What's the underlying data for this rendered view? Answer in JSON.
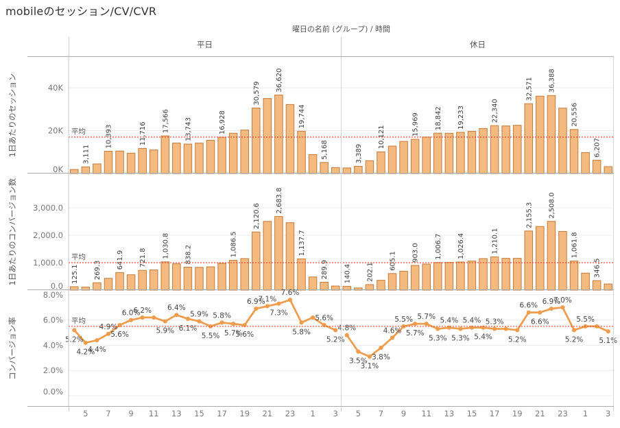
{
  "title": "mobileのセッション/CV/CVR",
  "column_header": "曜日の名前 (グループ) / 時間",
  "mean_label": "平均",
  "panes": [
    {
      "label": "平日"
    },
    {
      "label": "休日"
    }
  ],
  "x_ticks": [
    "5",
    "7",
    "9",
    "11",
    "13",
    "15",
    "17",
    "19",
    "21",
    "23",
    "1",
    "3"
  ],
  "colors": {
    "bar_fill": "#f5ba80",
    "bar_stroke": "#c07b3a",
    "line": "#f09c4d",
    "mean_line": "#e04f38",
    "grid": "#ebebeb",
    "row_border": "#ababab",
    "pane_border": "#d6d6d6",
    "axis_line": "#c4c4c4",
    "tick_text": "#767676",
    "label_text": "#3c3c3c",
    "point_label_text": "#454545"
  },
  "chart_data": [
    {
      "type": "bar",
      "row_title": "1日あたりのセッション",
      "y_ticks": [
        {
          "v": 0,
          "label": "0K"
        },
        {
          "v": 20000,
          "label": "20K"
        },
        {
          "v": 40000,
          "label": "40K"
        }
      ],
      "y_range": [
        0,
        54000
      ],
      "mean": 17000,
      "series": [
        {
          "pane": "平日",
          "values": [
            1900,
            3111,
            4500,
            10393,
            10500,
            9500,
            11716,
            11000,
            17566,
            14200,
            13743,
            14200,
            15500,
            16928,
            18800,
            20300,
            30579,
            35000,
            36620,
            32200,
            19744,
            8800,
            5168,
            2800
          ],
          "bar_labels": [
            null,
            "3,111",
            null,
            "10,393",
            null,
            null,
            "11,716",
            null,
            "17,566",
            null,
            "13,743",
            null,
            null,
            "16,928",
            null,
            null,
            "30,579",
            null,
            "36,620",
            null,
            "19,744",
            null,
            "5,168",
            null
          ]
        },
        {
          "pane": "休日",
          "values": [
            2600,
            3389,
            6000,
            10121,
            12800,
            15000,
            15969,
            17000,
            18842,
            18800,
            19233,
            19700,
            21000,
            22340,
            22200,
            22500,
            32571,
            36100,
            36388,
            30500,
            20556,
            9800,
            6207,
            3200
          ],
          "bar_labels": [
            null,
            "3,389",
            null,
            "10,121",
            null,
            null,
            "15,969",
            null,
            "18,842",
            null,
            "19,233",
            null,
            null,
            "22,340",
            null,
            null,
            "32,571",
            null,
            "36,388",
            null,
            "20,556",
            null,
            "6,207",
            null
          ]
        }
      ]
    },
    {
      "type": "bar",
      "row_title": "1日あたりのコンバージョン数",
      "y_ticks": [
        {
          "v": 0,
          "label": "0.0"
        },
        {
          "v": 1000,
          "label": "1,000.0"
        },
        {
          "v": 2000,
          "label": "2,000.0"
        },
        {
          "v": 3000,
          "label": "3,000.0"
        }
      ],
      "y_range": [
        0,
        4250
      ],
      "mean": 1000,
      "series": [
        {
          "pane": "平日",
          "values": [
            125.1,
            110,
            269.3,
            430,
            641.9,
            560,
            721.8,
            735,
            1030.8,
            960,
            838.2,
            830,
            850,
            975,
            1086.5,
            1150,
            2120.6,
            2505,
            2683.8,
            2458,
            1137.7,
            480,
            289.9,
            150
          ],
          "bar_labels": [
            "125.1",
            null,
            "269.3",
            null,
            "641.9",
            null,
            "721.8",
            null,
            "1,030.8",
            null,
            "838.2",
            null,
            null,
            null,
            "1,086.5",
            null,
            "2,120.6",
            null,
            "2,683.8",
            null,
            "1,137.7",
            null,
            "289.9",
            null
          ]
        },
        {
          "pane": "休日",
          "values": [
            140.4,
            80,
            202.1,
            360,
            605.1,
            690,
            903.0,
            950,
            1006.7,
            1010,
            1026.4,
            1060,
            1150,
            1210.1,
            1160,
            1160,
            2155.3,
            2320,
            2508.0,
            2140,
            1061.8,
            620,
            346.5,
            225
          ],
          "bar_labels": [
            "140.4",
            null,
            "202.1",
            null,
            "605.1",
            null,
            "903.0",
            null,
            "1,006.7",
            null,
            "1,026.4",
            null,
            null,
            "1,210.1",
            null,
            null,
            "2,155.3",
            null,
            "2,508.0",
            null,
            "1,061.8",
            null,
            "346.5",
            null
          ]
        }
      ]
    },
    {
      "type": "line",
      "row_title": "コンバージョン率",
      "y_ticks": [
        {
          "v": 0,
          "label": "0.0%"
        },
        {
          "v": 2,
          "label": "2.0%"
        },
        {
          "v": 4,
          "label": "4.0%"
        },
        {
          "v": 6,
          "label": "6.0%"
        },
        {
          "v": 8,
          "label": "8.0%"
        }
      ],
      "y_range": [
        0,
        8.8
      ],
      "mean": 5.5,
      "series": [
        {
          "pane": "平日",
          "values": [
            5.2,
            4.2,
            4.4,
            4.9,
            5.6,
            6.0,
            6.2,
            6.2,
            5.9,
            6.4,
            6.1,
            5.9,
            5.5,
            5.8,
            5.7,
            5.6,
            6.9,
            7.1,
            7.3,
            7.6,
            5.8,
            6.2,
            5.6,
            5.2
          ],
          "point_labels": [
            [
              "5.2%",
              "b"
            ],
            [
              "4.2%",
              "b"
            ],
            [
              "4.4%",
              "b"
            ],
            [
              "4.9%",
              "a"
            ],
            [
              "5.6%",
              "b"
            ],
            [
              "6.0%",
              "a"
            ],
            [
              "6.2%",
              "a"
            ],
            null,
            [
              "5.9%",
              "b"
            ],
            [
              "6.4%",
              "a"
            ],
            [
              "6.1%",
              "b"
            ],
            [
              "5.9%",
              "a"
            ],
            [
              "5.5%",
              "b"
            ],
            [
              "5.8%",
              "a"
            ],
            [
              "5.7%",
              "b"
            ],
            [
              "5.6%",
              "b"
            ],
            [
              "6.9%",
              "a"
            ],
            [
              "7.1%",
              "a"
            ],
            [
              "7.3%",
              "b"
            ],
            [
              "7.6%",
              "a"
            ],
            [
              "5.8%",
              "b"
            ],
            null,
            [
              "5.6%",
              "a"
            ],
            [
              "5.2%",
              "b"
            ]
          ]
        },
        {
          "pane": "休日",
          "values": [
            4.8,
            3.5,
            3.1,
            3.8,
            4.6,
            5.5,
            5.7,
            5.7,
            5.3,
            5.4,
            5.3,
            5.4,
            5.4,
            5.3,
            5.3,
            5.2,
            6.6,
            6.6,
            6.9,
            7.0,
            5.2,
            5.5,
            5.5,
            5.1
          ],
          "point_labels": [
            [
              "4.8%",
              "a"
            ],
            [
              "3.5%",
              "b"
            ],
            [
              "3.1%",
              "b"
            ],
            [
              "3.8%",
              "b"
            ],
            [
              "4.6%",
              "a"
            ],
            [
              "5.5%",
              "a"
            ],
            [
              "5.7%",
              "b"
            ],
            [
              "5.7%",
              "a"
            ],
            [
              "5.3%",
              "b"
            ],
            [
              "5.4%",
              "a"
            ],
            [
              "5.3%",
              "b"
            ],
            [
              "5.4%",
              "a"
            ],
            [
              "5.4%",
              "b"
            ],
            [
              "5.3%",
              "a"
            ],
            null,
            [
              "5.2%",
              "b"
            ],
            [
              "6.6%",
              "a"
            ],
            [
              "6.6%",
              "b"
            ],
            [
              "6.9%",
              "a"
            ],
            [
              "7.0%",
              "a"
            ],
            [
              "5.2%",
              "b"
            ],
            [
              "5.5%",
              "a"
            ],
            null,
            [
              "5.1%",
              "b"
            ]
          ]
        }
      ]
    }
  ]
}
